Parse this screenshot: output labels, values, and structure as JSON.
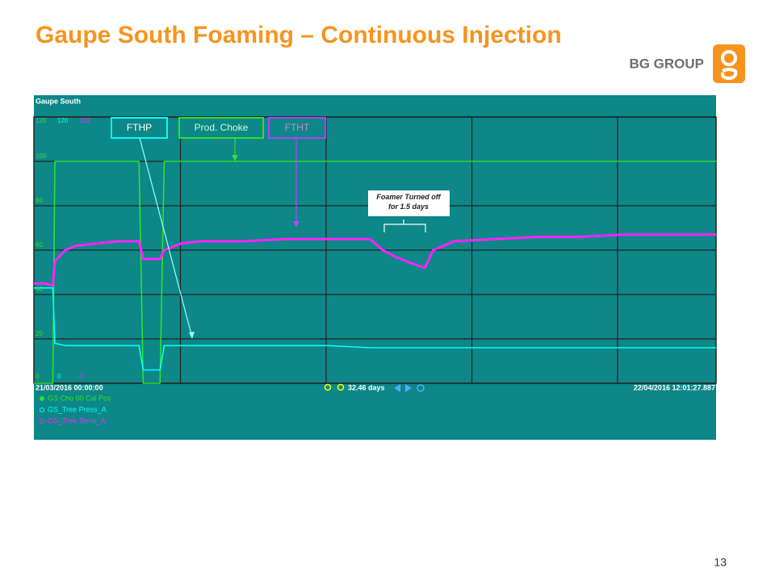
{
  "title": "Gaupe South Foaming – Continuous Injection",
  "logo": "BG GROUP",
  "page_number": "13",
  "chart_data": {
    "type": "line",
    "title": "Gaupe South",
    "x": [
      0,
      0.5,
      0.9,
      1,
      1.5,
      2,
      3,
      4,
      5,
      5.2,
      5.5,
      6,
      6.2,
      7,
      8,
      10,
      12,
      14,
      16,
      16.6,
      17.2,
      18,
      18.6,
      19,
      20,
      22,
      24,
      26,
      28,
      30,
      32.46
    ],
    "xlim": [
      0,
      32.46
    ],
    "x_start_label": "21/03/2016 00:00:00",
    "x_end_label": "22/04/2016 12:01:27.887",
    "x_span_label": "32.46 days",
    "ylim": [
      0,
      120
    ],
    "yticks": [
      0,
      20,
      40,
      60,
      80,
      100,
      120
    ],
    "grid": true,
    "series": [
      {
        "name": "GS Cho 00 Cal Pos",
        "color": "#2ee02e",
        "values": [
          0,
          0,
          0,
          100,
          100,
          100,
          100,
          100,
          100,
          0,
          0,
          0,
          100,
          100,
          100,
          100,
          100,
          100,
          100,
          100,
          100,
          100,
          100,
          100,
          100,
          100,
          100,
          100,
          100,
          100,
          100
        ]
      },
      {
        "name": "GS_Tree Press_A",
        "color": "#00ffff",
        "values": [
          43,
          43,
          43,
          18,
          17,
          17,
          17,
          17,
          17,
          6,
          6,
          6,
          17,
          17,
          17,
          17,
          17,
          17,
          16,
          16,
          16,
          16,
          16,
          16,
          16,
          16,
          16,
          16,
          16,
          16,
          16
        ]
      },
      {
        "name": "GS_Tree Temp_A",
        "color": "#ff22ff",
        "values": [
          45,
          45,
          44,
          55,
          60,
          62,
          63,
          64,
          64,
          56,
          56,
          56,
          60,
          63,
          64,
          64,
          65,
          65,
          65,
          60,
          57,
          54,
          52,
          60,
          64,
          65,
          66,
          66,
          67,
          67,
          67
        ]
      }
    ],
    "annotations": [
      "FTHP",
      "Prod. Choke",
      "FTHT",
      "Foamer Turned off for 1.5 days"
    ]
  }
}
